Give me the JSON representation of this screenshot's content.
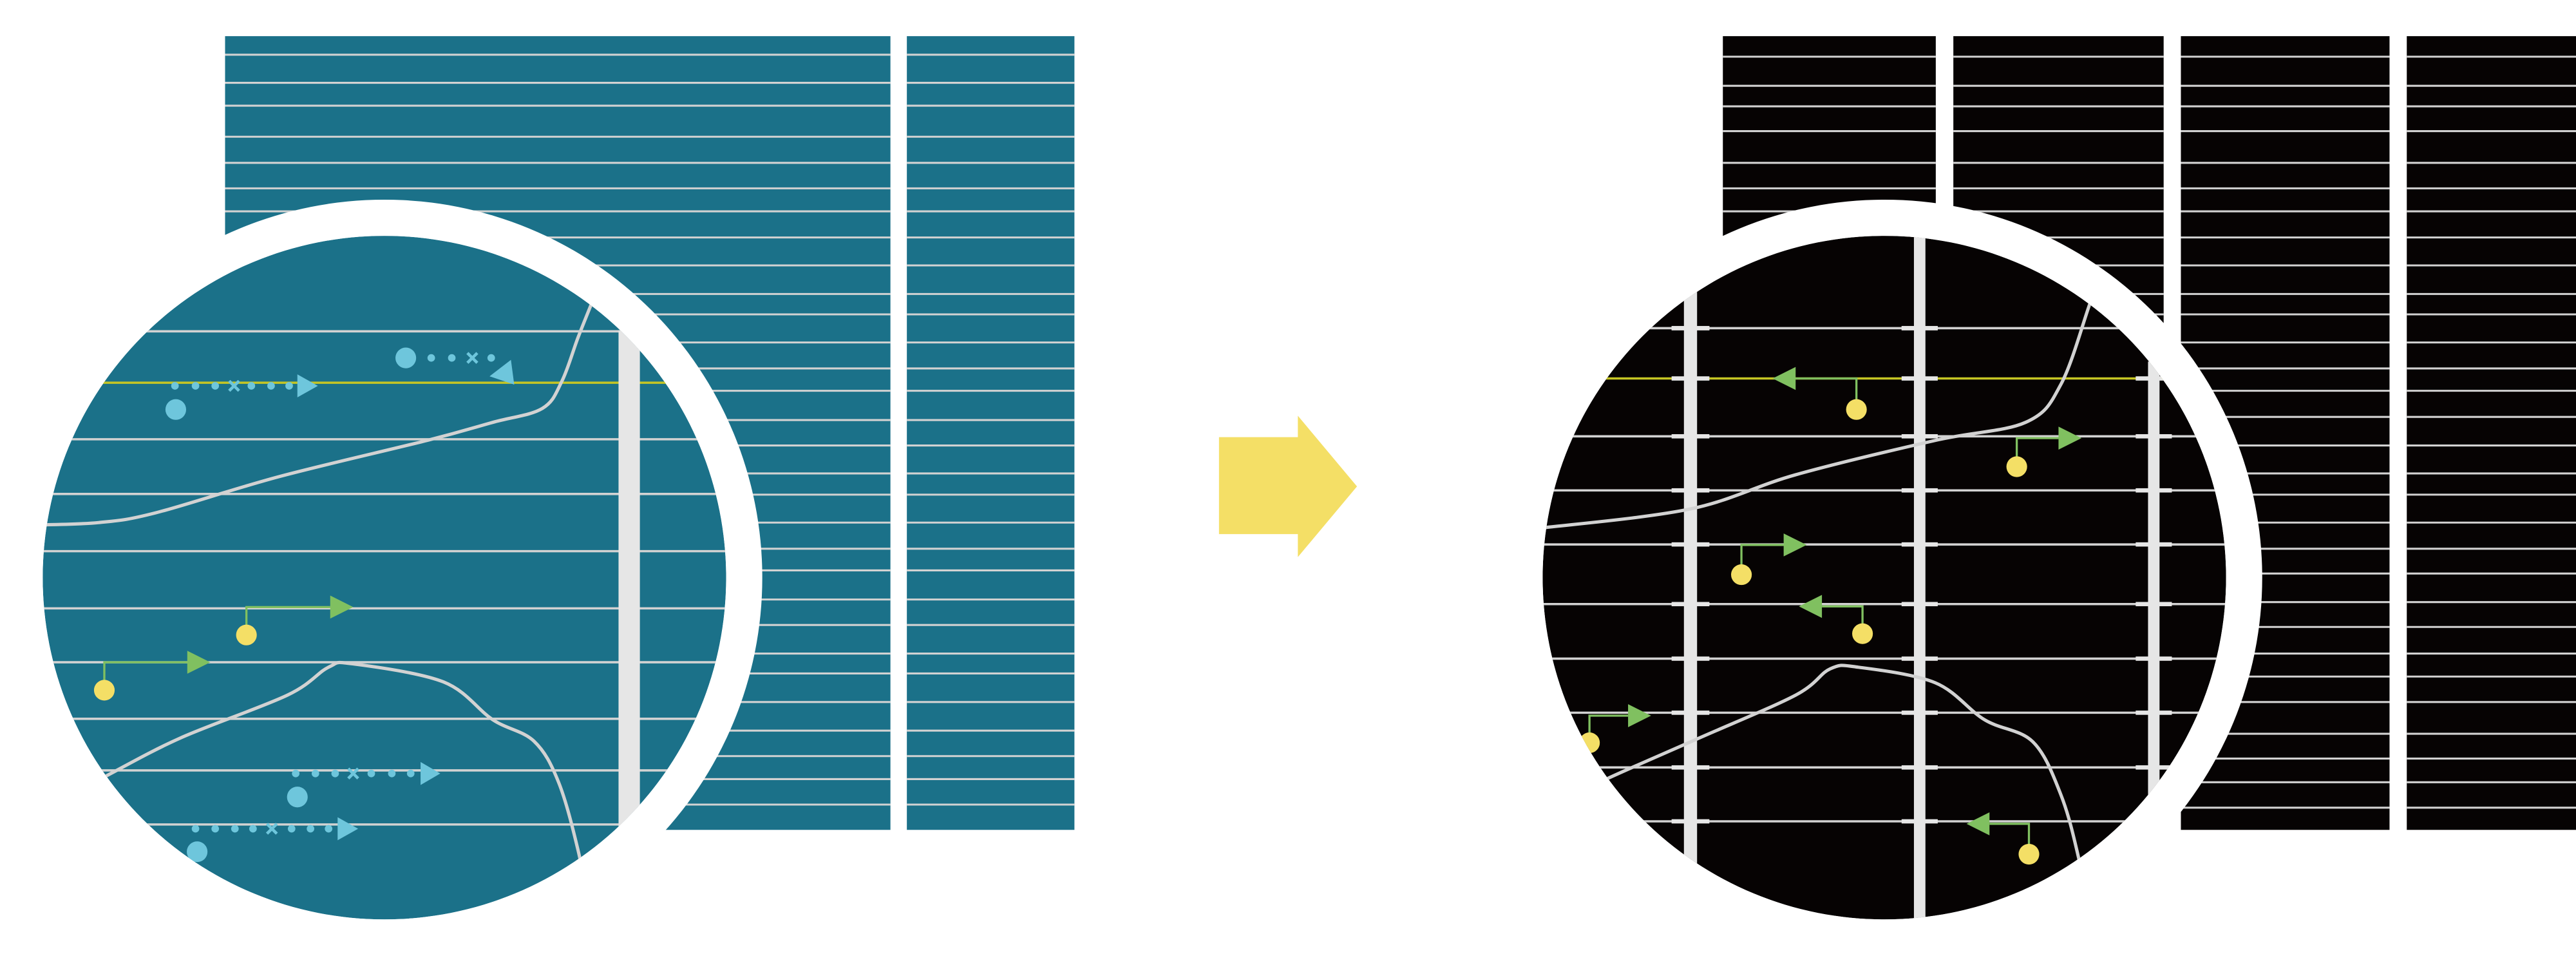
{
  "colors": {
    "background": "#ffffff",
    "before_panel": "#1b7189",
    "after_panel": "#060303",
    "grid_line": "#d2d2d2",
    "bar": "#e6e6e6",
    "highlight_line": "#c6c624",
    "blue_marker": "#6ec6dc",
    "green_arrow": "#80c060",
    "yellow_dot": "#f4df66",
    "transition_arrow": "#f4df66"
  },
  "icons": {
    "transition": "right-arrow-icon",
    "before_markers": "dotted-arrow-icon",
    "after_markers": "pin-arrow-icon"
  }
}
